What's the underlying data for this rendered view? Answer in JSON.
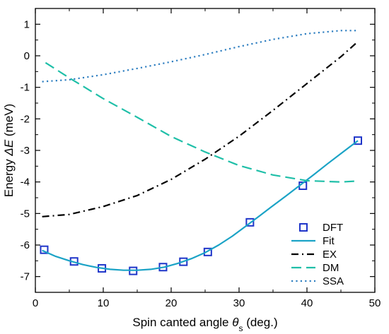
{
  "chart_data": {
    "type": "line",
    "xlabel": {
      "prefix": "Spin canted angle ",
      "symbol": "θ",
      "subscript": "s",
      "suffix": " (deg.)"
    },
    "ylabel": {
      "prefix": "Energy ",
      "symbol": "ΔE",
      "suffix": " (meV)"
    },
    "xlim": [
      0,
      50
    ],
    "ylim": [
      -7.5,
      1.5
    ],
    "xticks": [
      0,
      10,
      20,
      30,
      40,
      50
    ],
    "yticks": [
      1,
      0,
      -1,
      -2,
      -3,
      -4,
      -5,
      -6,
      -7
    ],
    "grid": false,
    "legend_position": "bottom-right",
    "series": [
      {
        "name": "DFT",
        "kind": "markers",
        "marker": "square",
        "color": "#1f35c9",
        "x": [
          1.3,
          5.7,
          9.8,
          14.4,
          18.8,
          21.8,
          25.4,
          31.6,
          39.4,
          47.5
        ],
        "y": [
          -6.15,
          -6.52,
          -6.74,
          -6.82,
          -6.7,
          -6.53,
          -6.22,
          -5.28,
          -4.12,
          -2.69
        ]
      },
      {
        "name": "Fit",
        "kind": "line",
        "dash": "solid",
        "color": "#1ba3c6",
        "x": [
          1,
          3,
          5,
          7,
          9,
          11,
          13,
          15,
          17,
          19,
          21,
          23,
          25,
          27,
          29,
          31,
          33,
          35,
          37,
          39,
          41,
          43,
          45,
          47.5
        ],
        "y": [
          -6.17,
          -6.36,
          -6.5,
          -6.62,
          -6.71,
          -6.77,
          -6.8,
          -6.8,
          -6.77,
          -6.7,
          -6.58,
          -6.43,
          -6.24,
          -6.0,
          -5.72,
          -5.4,
          -5.08,
          -4.75,
          -4.43,
          -4.1,
          -3.77,
          -3.43,
          -3.1,
          -2.69
        ]
      },
      {
        "name": "EX",
        "kind": "line",
        "dash": "dashdot",
        "color": "#000000",
        "x": [
          1,
          5,
          10,
          15,
          20,
          25,
          30,
          35,
          40,
          45,
          47.5
        ],
        "y": [
          -5.1,
          -5.03,
          -4.78,
          -4.43,
          -3.92,
          -3.28,
          -2.55,
          -1.73,
          -0.88,
          -0.03,
          0.45
        ]
      },
      {
        "name": "DM",
        "kind": "line",
        "dash": "dashed",
        "color": "#1fbfa8",
        "x": [
          1.5,
          5,
          10,
          15,
          20,
          25,
          30,
          35,
          40,
          45,
          47.5
        ],
        "y": [
          -0.22,
          -0.7,
          -1.36,
          -1.95,
          -2.56,
          -3.05,
          -3.48,
          -3.78,
          -3.96,
          -4.0,
          -3.97
        ]
      },
      {
        "name": "SSA",
        "kind": "line",
        "dash": "dotted",
        "color": "#2f7fc1",
        "x": [
          1,
          5,
          10,
          15,
          20,
          25,
          30,
          35,
          40,
          45,
          47.5
        ],
        "y": [
          -0.82,
          -0.76,
          -0.6,
          -0.4,
          -0.19,
          0.04,
          0.29,
          0.52,
          0.7,
          0.8,
          0.8
        ]
      }
    ]
  }
}
